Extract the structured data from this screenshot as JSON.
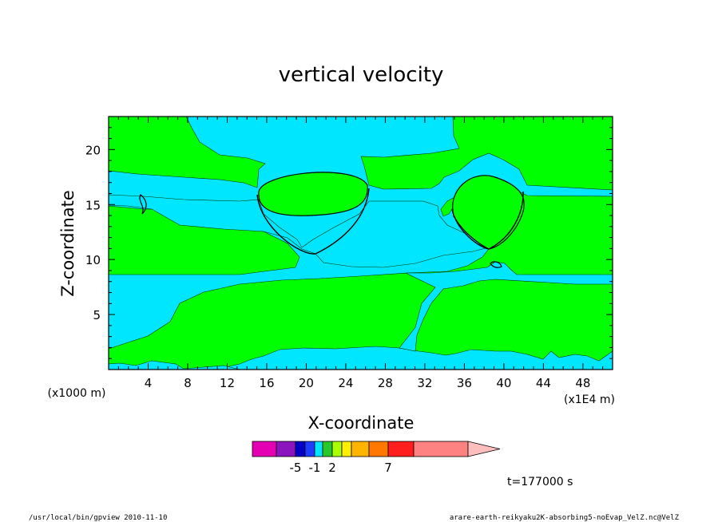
{
  "chart_data": {
    "type": "heatmap",
    "title": "vertical velocity",
    "xlabel": "X-coordinate",
    "ylabel": "Z-coordinate",
    "x_unit": "(x1E4 m)",
    "y_unit": "(x1000 m)",
    "xlim": [
      0,
      51
    ],
    "ylim": [
      0,
      23
    ],
    "x_ticks": [
      4,
      8,
      12,
      16,
      20,
      24,
      28,
      32,
      36,
      40,
      44,
      48
    ],
    "y_ticks": [
      5,
      10,
      15,
      20
    ],
    "colorbar": {
      "tick_labels": [
        "-5",
        "-1",
        "2",
        "7"
      ],
      "colors": [
        "#e600b4",
        "#8c14be",
        "#0000c8",
        "#1e3cff",
        "#00e6ff",
        "#28c828",
        "#aaff00",
        "#ffee00",
        "#ffb400",
        "#ff7800",
        "#ff1e1e",
        "#ff8282"
      ],
      "extend_color": "#ffbebe"
    },
    "fill_colors": {
      "background": "#00ff00",
      "region": "#00e6ff",
      "contour": "#000000"
    },
    "time_label": "t=177000 s"
  },
  "footer": {
    "left": "/usr/local/bin/gpview  2010-11-10",
    "right": "arare-earth-reikyaku2K-absorbing5-noEvap_VelZ.nc@VelZ"
  }
}
